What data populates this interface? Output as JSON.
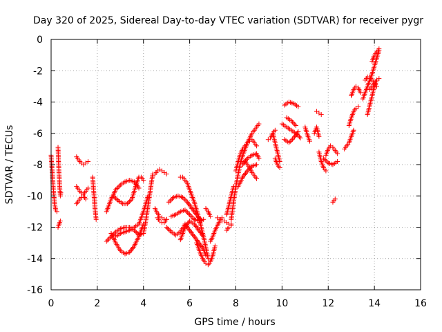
{
  "chart_data": {
    "type": "scatter",
    "title": "Day 320 of 2025, Sidereal Day-to-day VTEC variation (SDTVAR) for receiver pygr",
    "xlabel": "GPS time / hours",
    "ylabel": "SDTVAR / TECUs",
    "xlim": [
      0,
      16
    ],
    "ylim": [
      -16,
      0
    ],
    "xticks": [
      0,
      2,
      4,
      6,
      8,
      10,
      12,
      14,
      16
    ],
    "yticks": [
      0,
      -2,
      -4,
      -6,
      -8,
      -10,
      -12,
      -14,
      -16
    ],
    "grid": true,
    "marker": "+",
    "color": "#ff0000",
    "series": [
      {
        "name": "s1",
        "x": [
          0.0,
          0.05,
          0.1,
          0.15,
          0.2,
          0.25
        ],
        "y": [
          -7.4,
          -8.5,
          -9.6,
          -10.5,
          -10.9,
          -11.0
        ]
      },
      {
        "name": "s2",
        "x": [
          0.3,
          0.32,
          0.35,
          0.38,
          0.4,
          0.42
        ],
        "y": [
          -6.9,
          -7.8,
          -8.8,
          -9.6,
          -10.0,
          -9.8
        ]
      },
      {
        "name": "s3",
        "x": [
          0.3,
          0.35,
          0.4
        ],
        "y": [
          -12.0,
          -11.8,
          -11.6
        ]
      },
      {
        "name": "s4",
        "x": [
          1.1,
          1.2,
          1.3,
          1.4,
          1.5,
          1.6
        ],
        "y": [
          -7.5,
          -7.7,
          -7.9,
          -8.0,
          -7.9,
          -7.8
        ]
      },
      {
        "name": "s5",
        "x": [
          1.1,
          1.2,
          1.3,
          1.4,
          1.5,
          1.6
        ],
        "y": [
          -9.4,
          -9.6,
          -9.8,
          -9.9,
          -9.7,
          -9.5
        ]
      },
      {
        "name": "s6",
        "x": [
          1.1,
          1.2,
          1.3,
          1.4,
          1.5
        ],
        "y": [
          -10.5,
          -10.3,
          -10.1,
          -10.0,
          -10.2
        ]
      },
      {
        "name": "s7",
        "x": [
          1.8,
          1.85,
          1.9,
          1.95
        ],
        "y": [
          -8.8,
          -9.8,
          -10.8,
          -11.5
        ]
      },
      {
        "name": "s8",
        "x": [
          2.4,
          2.6,
          2.8,
          3.0,
          3.2,
          3.4,
          3.6,
          3.8
        ],
        "y": [
          -11.0,
          -10.2,
          -9.6,
          -9.3,
          -9.1,
          -9.0,
          -9.1,
          -9.5
        ]
      },
      {
        "name": "s9",
        "x": [
          2.4,
          2.6,
          2.8,
          3.0,
          3.2,
          3.4,
          3.6,
          3.8,
          4.0,
          4.1,
          4.2,
          4.3,
          4.4
        ],
        "y": [
          -12.9,
          -12.6,
          -12.3,
          -12.1,
          -12.0,
          -12.0,
          -12.2,
          -12.5,
          -12.4,
          -11.6,
          -10.6,
          -9.6,
          -8.6
        ]
      },
      {
        "name": "s10",
        "x": [
          2.6,
          2.8,
          3.0,
          3.2,
          3.4,
          3.6,
          3.8,
          4.0
        ],
        "y": [
          -12.4,
          -13.0,
          -13.5,
          -13.7,
          -13.6,
          -13.2,
          -12.6,
          -11.8
        ]
      },
      {
        "name": "s11",
        "x": [
          2.7,
          2.9,
          3.1,
          3.3,
          3.5,
          3.6,
          3.7,
          3.8,
          3.9,
          4.0
        ],
        "y": [
          -10.0,
          -10.3,
          -10.5,
          -10.5,
          -10.2,
          -9.7,
          -9.2,
          -8.8,
          -8.8,
          -9.0
        ]
      },
      {
        "name": "s12",
        "x": [
          2.8,
          3.0,
          3.2,
          3.4,
          3.6,
          3.8,
          4.0,
          4.2
        ],
        "y": [
          -12.6,
          -12.4,
          -12.3,
          -12.2,
          -12.0,
          -11.8,
          -11.0,
          -10.0
        ]
      },
      {
        "name": "s13",
        "x": [
          4.5,
          4.6,
          4.7,
          4.8,
          4.9,
          5.0
        ],
        "y": [
          -8.6,
          -8.4,
          -8.3,
          -8.4,
          -8.5,
          -8.6
        ]
      },
      {
        "name": "s14",
        "x": [
          4.5,
          4.6,
          4.7,
          4.8,
          4.9,
          5.0
        ],
        "y": [
          -10.8,
          -11.1,
          -11.3,
          -11.4,
          -11.5,
          -11.5
        ]
      },
      {
        "name": "s15",
        "x": [
          4.6,
          4.7,
          4.8,
          4.9,
          5.0
        ],
        "y": [
          -11.4,
          -11.6,
          -11.7,
          -11.7,
          -11.5
        ]
      },
      {
        "name": "s16",
        "x": [
          5.0,
          5.2,
          5.4,
          5.6,
          5.8,
          6.0,
          6.2,
          6.4,
          6.6,
          6.7
        ],
        "y": [
          -12.0,
          -12.3,
          -12.5,
          -12.3,
          -11.8,
          -12.2,
          -12.6,
          -13.0,
          -13.4,
          -13.8
        ]
      },
      {
        "name": "s17",
        "x": [
          5.1,
          5.3,
          5.5,
          5.7,
          5.9,
          6.1,
          6.3,
          6.5
        ],
        "y": [
          -10.4,
          -10.1,
          -10.0,
          -10.1,
          -10.4,
          -10.8,
          -11.2,
          -11.6
        ]
      },
      {
        "name": "s18",
        "x": [
          5.2,
          5.4,
          5.6,
          5.8,
          6.0,
          6.2,
          6.4,
          6.6
        ],
        "y": [
          -11.3,
          -11.2,
          -11.0,
          -10.9,
          -11.2,
          -11.5,
          -11.6,
          -11.5
        ]
      },
      {
        "name": "s19",
        "x": [
          5.6,
          5.8,
          6.0,
          6.2,
          6.4,
          6.6
        ],
        "y": [
          -12.8,
          -12.0,
          -11.6,
          -11.8,
          -12.2,
          -12.6
        ]
      },
      {
        "name": "s20",
        "x": [
          5.6,
          5.7,
          5.8,
          5.9,
          6.0,
          6.1,
          6.2,
          6.3,
          6.4,
          6.5,
          6.6,
          6.7,
          6.8
        ],
        "y": [
          -8.8,
          -8.8,
          -9.0,
          -9.2,
          -9.6,
          -10.0,
          -10.4,
          -10.9,
          -11.4,
          -12.0,
          -12.6,
          -13.3,
          -14.0
        ]
      },
      {
        "name": "s21",
        "x": [
          6.3,
          6.4,
          6.5,
          6.6,
          6.7,
          6.8,
          6.9,
          7.0,
          7.1
        ],
        "y": [
          -13.0,
          -13.4,
          -13.8,
          -14.1,
          -14.3,
          -14.4,
          -14.2,
          -13.8,
          -13.2
        ]
      },
      {
        "name": "s22",
        "x": [
          6.9,
          7.0,
          7.1,
          7.2,
          7.3,
          7.4
        ],
        "y": [
          -12.9,
          -12.6,
          -12.2,
          -11.9,
          -11.6,
          -11.4
        ]
      },
      {
        "name": "s23",
        "x": [
          6.7,
          6.8,
          6.9
        ],
        "y": [
          -10.8,
          -11.0,
          -11.3
        ]
      },
      {
        "name": "s24",
        "x": [
          7.2,
          7.3,
          7.4,
          7.5,
          7.6,
          7.7,
          7.8
        ],
        "y": [
          -11.4,
          -11.5,
          -11.6,
          -11.6,
          -11.7,
          -11.8,
          -11.8
        ]
      },
      {
        "name": "s25",
        "x": [
          7.6,
          7.7,
          7.8,
          7.9
        ],
        "y": [
          -11.2,
          -10.6,
          -10.0,
          -9.4
        ]
      },
      {
        "name": "s26",
        "x": [
          7.6,
          7.7,
          7.8
        ],
        "y": [
          -12.2,
          -12.0,
          -11.9
        ]
      },
      {
        "name": "s27",
        "x": [
          7.8,
          7.9,
          8.0,
          8.1,
          8.2,
          8.3,
          8.4,
          8.5,
          8.6,
          8.7,
          8.8,
          8.9,
          9.0
        ],
        "y": [
          -11.5,
          -10.4,
          -9.4,
          -8.6,
          -7.9,
          -7.4,
          -7.0,
          -6.6,
          -6.3,
          -6.0,
          -5.8,
          -5.6,
          -5.4
        ]
      },
      {
        "name": "s28",
        "x": [
          8.0,
          8.1,
          8.2,
          8.3,
          8.4,
          8.5,
          8.6,
          8.7,
          8.8,
          8.9
        ],
        "y": [
          -8.4,
          -7.8,
          -7.3,
          -7.0,
          -6.8,
          -6.6,
          -6.5,
          -6.4,
          -6.6,
          -6.8
        ]
      },
      {
        "name": "s29",
        "x": [
          8.1,
          8.3,
          8.5,
          8.7,
          8.9
        ],
        "y": [
          -9.4,
          -8.8,
          -8.4,
          -8.1,
          -8.0
        ]
      },
      {
        "name": "s30",
        "x": [
          8.3,
          8.5,
          8.7,
          8.9,
          9.0
        ],
        "y": [
          -8.0,
          -7.6,
          -7.4,
          -7.3,
          -7.6
        ]
      },
      {
        "name": "s31",
        "x": [
          8.4,
          8.5,
          8.6,
          8.7,
          8.8,
          8.9
        ],
        "y": [
          -7.8,
          -8.0,
          -8.2,
          -8.5,
          -8.7,
          -8.9
        ]
      },
      {
        "name": "s32",
        "x": [
          9.6,
          9.7,
          9.8,
          9.9
        ],
        "y": [
          -6.0,
          -6.6,
          -7.2,
          -7.8
        ]
      },
      {
        "name": "s33",
        "x": [
          9.4,
          9.5,
          9.6,
          9.7
        ],
        "y": [
          -6.4,
          -6.3,
          -6.0,
          -5.8
        ]
      },
      {
        "name": "s34",
        "x": [
          9.7,
          9.8,
          9.9
        ],
        "y": [
          -7.6,
          -8.0,
          -8.2
        ]
      },
      {
        "name": "s35",
        "x": [
          10.1,
          10.3,
          10.5,
          10.7
        ],
        "y": [
          -4.2,
          -4.0,
          -4.1,
          -4.3
        ]
      },
      {
        "name": "s36",
        "x": [
          10.0,
          10.2,
          10.4,
          10.6,
          10.8
        ],
        "y": [
          -5.4,
          -5.6,
          -5.8,
          -6.0,
          -6.3
        ]
      },
      {
        "name": "s37",
        "x": [
          10.1,
          10.3,
          10.5,
          10.7
        ],
        "y": [
          -6.4,
          -6.6,
          -6.3,
          -5.9
        ]
      },
      {
        "name": "s38",
        "x": [
          10.2,
          10.4,
          10.6
        ],
        "y": [
          -5.0,
          -5.2,
          -5.5
        ]
      },
      {
        "name": "s39",
        "x": [
          11.0,
          11.1,
          11.2
        ],
        "y": [
          -5.6,
          -6.1,
          -6.5
        ]
      },
      {
        "name": "s40",
        "x": [
          11.4,
          11.5,
          11.6
        ],
        "y": [
          -6.0,
          -5.6,
          -6.2
        ]
      },
      {
        "name": "s41",
        "x": [
          11.5,
          11.6,
          11.7
        ],
        "y": [
          -4.6,
          -4.7,
          -4.8
        ]
      },
      {
        "name": "s42",
        "x": [
          11.9,
          12.0,
          12.1,
          12.2,
          12.3,
          12.4
        ],
        "y": [
          -7.4,
          -7.0,
          -6.8,
          -6.9,
          -7.1,
          -7.3
        ]
      },
      {
        "name": "s43",
        "x": [
          11.8,
          12.0,
          12.2,
          12.4
        ],
        "y": [
          -7.6,
          -7.9,
          -8.0,
          -7.8
        ]
      },
      {
        "name": "s44",
        "x": [
          11.6,
          11.7,
          11.8,
          11.9
        ],
        "y": [
          -7.2,
          -7.8,
          -8.2,
          -8.4
        ]
      },
      {
        "name": "s45",
        "x": [
          12.2,
          12.3
        ],
        "y": [
          -10.4,
          -10.2
        ]
      },
      {
        "name": "s46",
        "x": [
          12.7,
          12.8,
          12.9,
          13.0,
          13.1
        ],
        "y": [
          -7.0,
          -6.8,
          -6.6,
          -6.2,
          -5.8
        ]
      },
      {
        "name": "s47",
        "x": [
          12.9,
          13.0,
          13.1,
          13.2,
          13.3
        ],
        "y": [
          -5.5,
          -5.0,
          -4.6,
          -4.4,
          -4.3
        ]
      },
      {
        "name": "s48",
        "x": [
          13.0,
          13.1,
          13.2,
          13.3,
          13.4
        ],
        "y": [
          -3.6,
          -3.2,
          -3.0,
          -3.1,
          -3.4
        ]
      },
      {
        "name": "s49",
        "x": [
          13.5,
          13.6,
          13.7,
          13.8,
          13.9,
          14.0,
          14.1,
          14.2
        ],
        "y": [
          -3.8,
          -3.4,
          -3.0,
          -2.6,
          -2.2,
          -1.7,
          -1.2,
          -0.7
        ]
      },
      {
        "name": "s50",
        "x": [
          13.7,
          13.8,
          13.9,
          14.0,
          14.1
        ],
        "y": [
          -4.8,
          -4.2,
          -3.6,
          -3.0,
          -2.6
        ]
      },
      {
        "name": "s51",
        "x": [
          13.8,
          13.9,
          14.0,
          14.1,
          14.2
        ],
        "y": [
          -3.2,
          -3.0,
          -2.8,
          -2.6,
          -2.5
        ]
      },
      {
        "name": "s52",
        "x": [
          13.9,
          14.0,
          14.1,
          14.2
        ],
        "y": [
          -1.4,
          -1.0,
          -0.8,
          -0.6
        ]
      },
      {
        "name": "s53",
        "x": [
          13.6,
          13.7,
          13.8,
          13.9,
          14.0,
          14.1
        ],
        "y": [
          -2.6,
          -2.4,
          -2.4,
          -2.6,
          -2.8,
          -3.0
        ]
      }
    ]
  }
}
